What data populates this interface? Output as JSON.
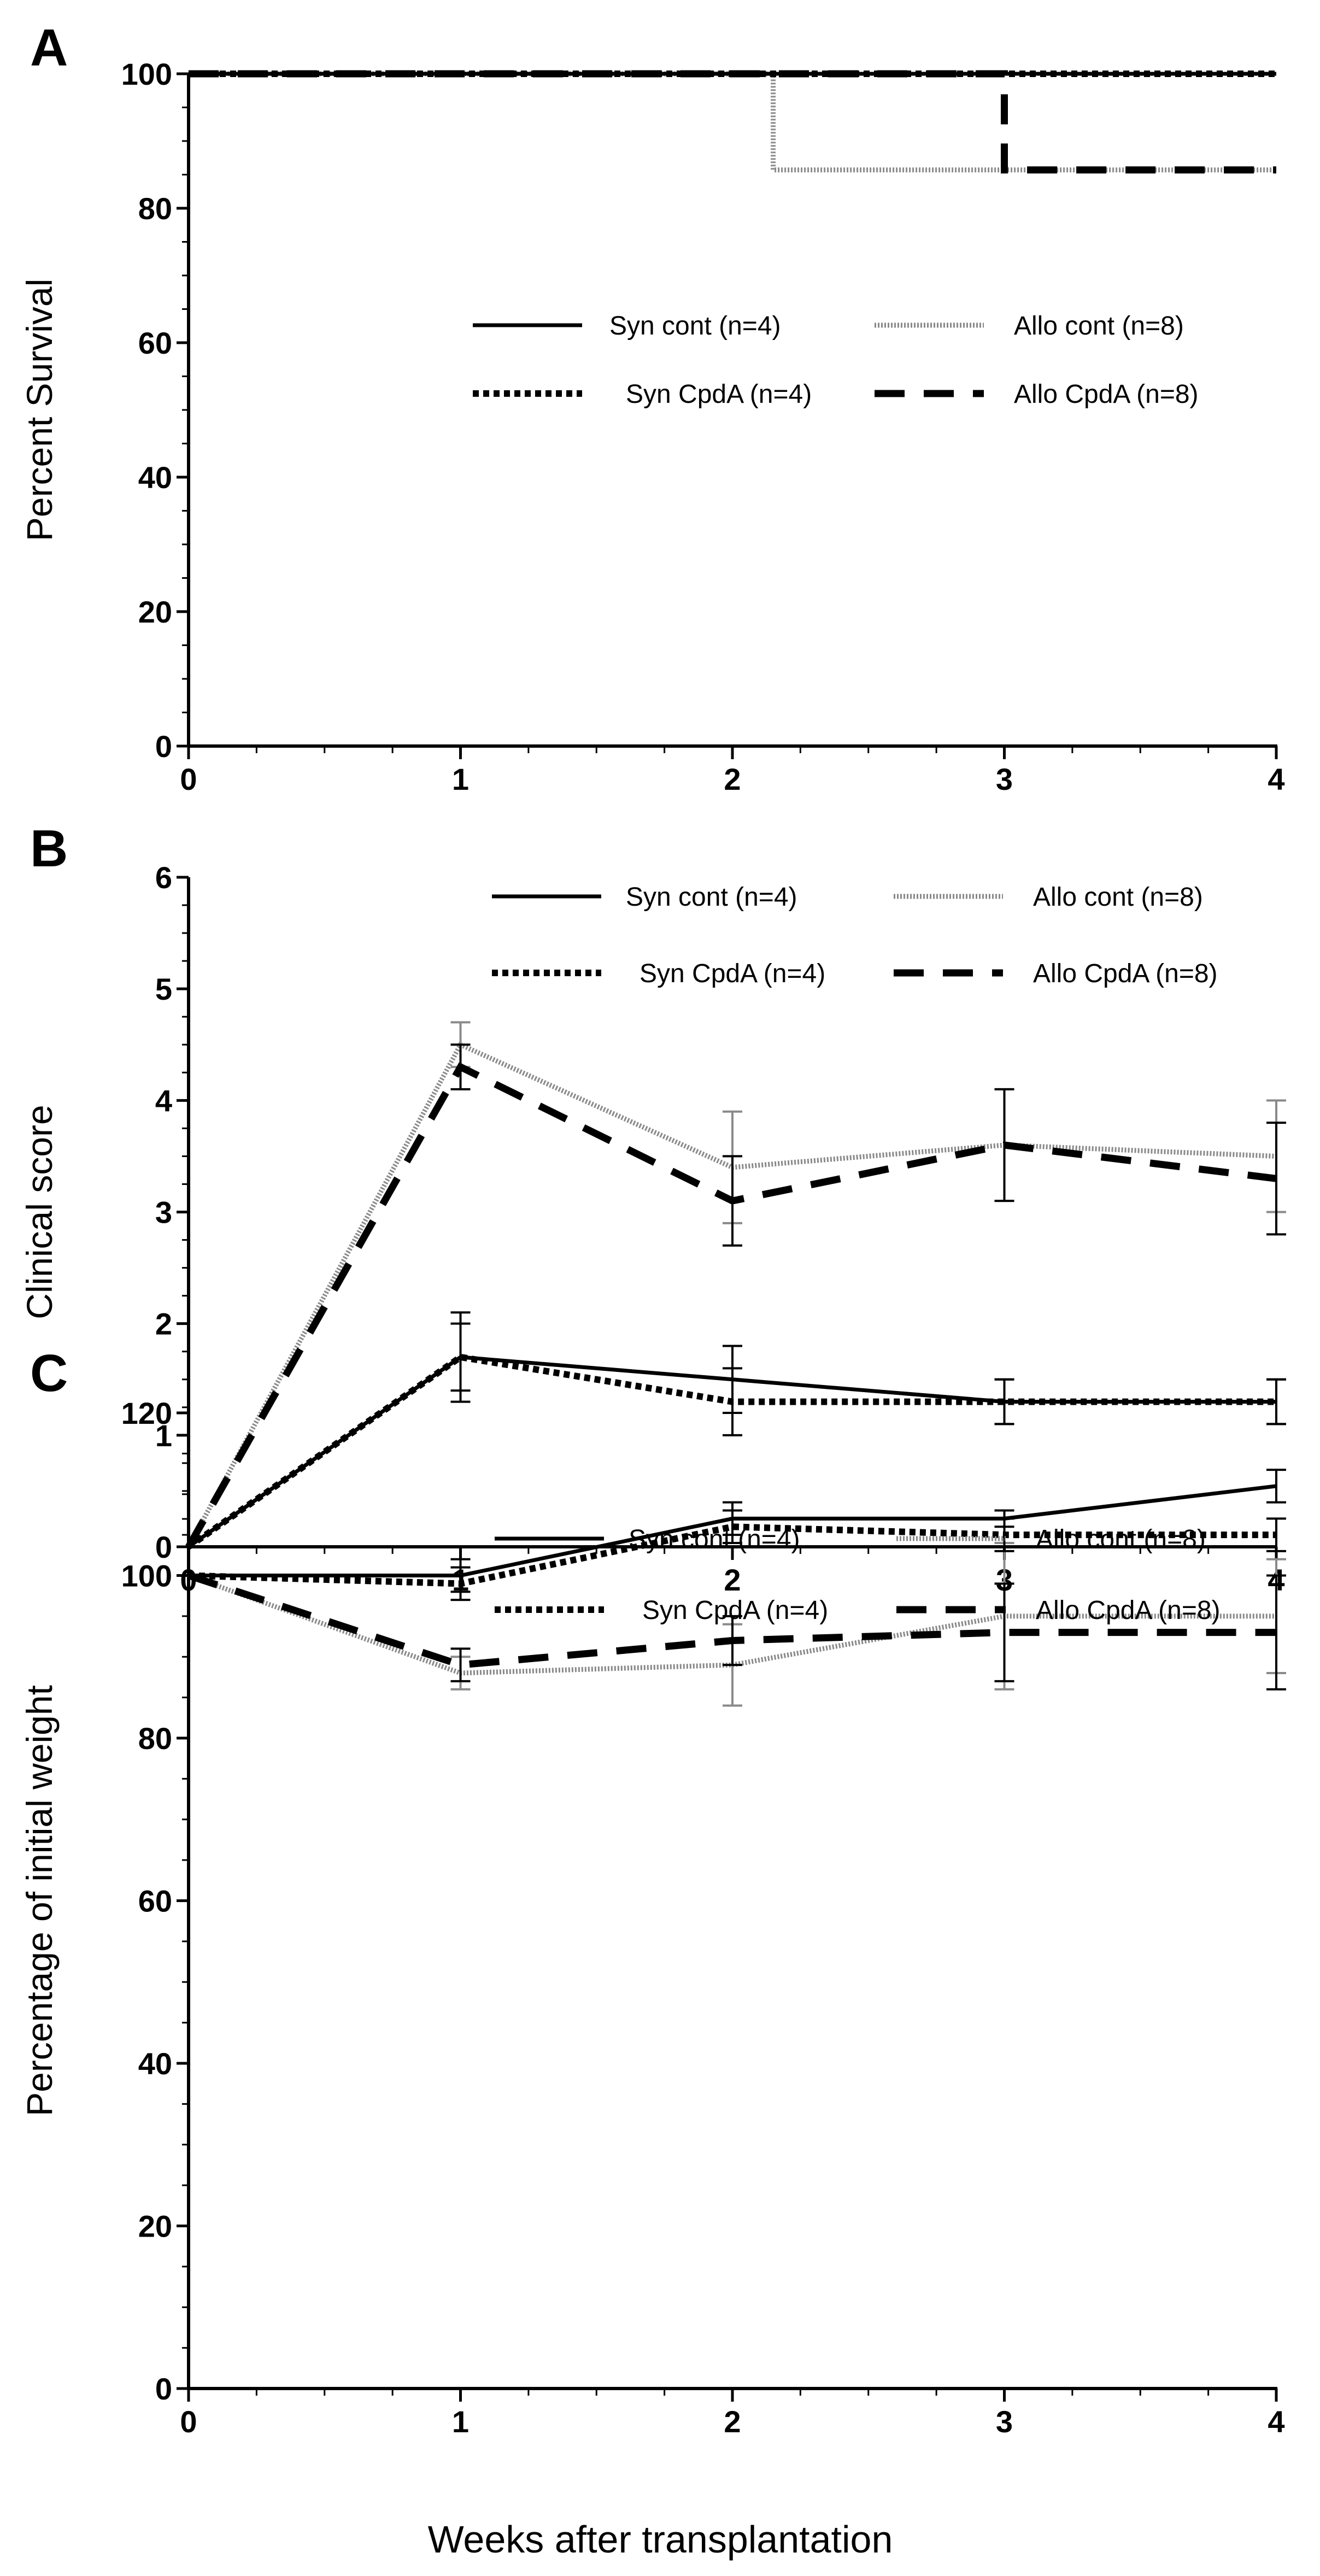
{
  "x_axis_title": "Weeks after transplantation",
  "colors": {
    "syn": "#000000",
    "allo_cont": "#8a8a8a",
    "allo_cpda": "#000000",
    "axis": "#000000"
  },
  "chart_data": [
    {
      "panel": "A",
      "type": "line",
      "step": true,
      "title": "",
      "xlabel": "Weeks after transplantation",
      "ylabel": "Percent Survival",
      "xlim": [
        0,
        4
      ],
      "ylim": [
        0,
        100
      ],
      "xticks": [
        0,
        1,
        2,
        3,
        4
      ],
      "yticks": [
        0,
        20,
        40,
        60,
        80,
        100
      ],
      "legend": [
        "Syn cont (n=4)",
        "Allo cont (n=8)",
        "Syn CpdA (n=4)",
        "Allo CpdA (n=8)"
      ],
      "series": [
        {
          "name": "Syn cont (n=4)",
          "style": "solid",
          "x": [
            0,
            4
          ],
          "values": [
            100,
            100
          ]
        },
        {
          "name": "Allo cont (n=8)",
          "style": "gray",
          "x": [
            0,
            2.15,
            2.15,
            4
          ],
          "values": [
            100,
            100,
            85.7,
            85.7
          ]
        },
        {
          "name": "Syn CpdA (n=4)",
          "style": "dotted",
          "x": [
            0,
            4
          ],
          "values": [
            100,
            100
          ]
        },
        {
          "name": "Allo CpdA (n=8)",
          "style": "dashed",
          "x": [
            0,
            3,
            3,
            4
          ],
          "values": [
            100,
            100,
            85.7,
            85.7
          ]
        }
      ]
    },
    {
      "panel": "B",
      "type": "line",
      "title": "",
      "xlabel": "Weeks after transplantation",
      "ylabel": "Clinical score",
      "xlim": [
        0,
        4
      ],
      "ylim": [
        0,
        6
      ],
      "xticks": [
        0,
        1,
        2,
        3,
        4
      ],
      "yticks": [
        0,
        1,
        2,
        3,
        4,
        5,
        6
      ],
      "legend": [
        "Syn cont (n=4)",
        "Allo cont (n=8)",
        "Syn CpdA (n=4)",
        "Allo CpdA (n=8)"
      ],
      "x": [
        0,
        1,
        2,
        3,
        4
      ],
      "series": [
        {
          "name": "Syn cont (n=4)",
          "style": "solid",
          "values": [
            0,
            1.7,
            1.5,
            1.3,
            1.3
          ],
          "errors": [
            0,
            0.4,
            0.3,
            0.2,
            0.2
          ]
        },
        {
          "name": "Allo cont (n=8)",
          "style": "gray",
          "values": [
            0,
            4.5,
            3.4,
            3.6,
            3.5
          ],
          "errors": [
            0,
            0.2,
            0.5,
            0.5,
            0.5
          ]
        },
        {
          "name": "Syn CpdA (n=4)",
          "style": "dotted",
          "values": [
            0,
            1.7,
            1.3,
            1.3,
            1.3
          ],
          "errors": [
            0,
            0.3,
            0.3,
            0.2,
            0.2
          ]
        },
        {
          "name": "Allo CpdA (n=8)",
          "style": "dashed",
          "values": [
            0,
            4.3,
            3.1,
            3.6,
            3.3
          ],
          "errors": [
            0,
            0.2,
            0.4,
            0.5,
            0.5
          ]
        }
      ]
    },
    {
      "panel": "C",
      "type": "line",
      "title": "",
      "xlabel": "Weeks after transplantation",
      "ylabel": "Percentage of initial weight",
      "xlim": [
        0,
        4
      ],
      "ylim": [
        0,
        120
      ],
      "xticks": [
        0,
        1,
        2,
        3,
        4
      ],
      "yticks": [
        0,
        20,
        40,
        60,
        80,
        100,
        120
      ],
      "legend": [
        "Syn cont (n=4)",
        "Allo cont (n=8)",
        "Syn CpdA (n=4)",
        "Allo CpdA (n=8)"
      ],
      "x": [
        0,
        1,
        2,
        3,
        4
      ],
      "series": [
        {
          "name": "Syn cont (n=4)",
          "style": "solid",
          "values": [
            100,
            100,
            107,
            107,
            111
          ],
          "errors": [
            0,
            2,
            2,
            1,
            2
          ]
        },
        {
          "name": "Allo cont (n=8)",
          "style": "gray",
          "values": [
            100,
            88,
            89,
            95,
            95
          ],
          "errors": [
            0,
            2,
            5,
            9,
            7
          ]
        },
        {
          "name": "Syn CpdA (n=4)",
          "style": "dotted",
          "values": [
            100,
            99,
            106,
            105,
            105
          ],
          "errors": [
            0,
            2,
            2,
            2,
            2
          ]
        },
        {
          "name": "Allo CpdA (n=8)",
          "style": "dashed",
          "values": [
            100,
            89,
            92,
            93,
            93
          ],
          "errors": [
            0,
            2,
            3,
            6,
            7
          ]
        }
      ]
    }
  ]
}
